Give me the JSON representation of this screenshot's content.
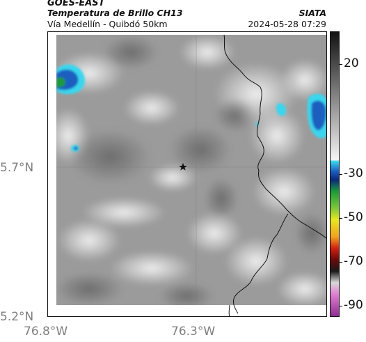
{
  "header": {
    "satellite": "GOES-EAST",
    "product": "Temperatura de Brillo CH13",
    "region": "Vía Medellín - Quibdó 50km",
    "organization": "SIATA",
    "timestamp": "2024-05-28 07:29"
  },
  "map": {
    "lat_ticks": [
      "5.7°N",
      "5.2°N"
    ],
    "lon_ticks": [
      "76.8°W",
      "76.3°W"
    ],
    "marker": "star-marker",
    "colors": {
      "cloud_light": "#e8e8e8",
      "cloud_mid": "#9a9a9a",
      "cloud_dark": "#6e6e6e",
      "cold_blue": "#1c5fbf",
      "cold_cyan": "#3ad6ee",
      "coldest_green": "#1a9a3a",
      "border_line": "#111111"
    }
  },
  "colorbar": {
    "ticks": [
      "20",
      "-30",
      "-50",
      "-70",
      "-90"
    ],
    "tick_values": [
      20,
      -30,
      -50,
      -70,
      -90
    ],
    "range": [
      -95,
      35
    ]
  }
}
